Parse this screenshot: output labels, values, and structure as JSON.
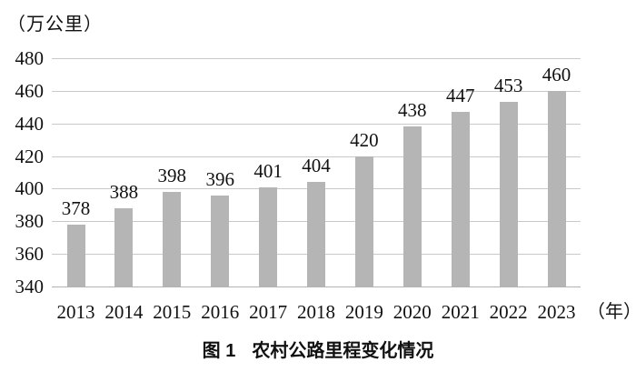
{
  "chart_data": {
    "type": "bar",
    "title": "图 1　农村公路里程变化情况",
    "caption_prefix": "图 1",
    "caption_text": "农村公路里程变化情况",
    "unit_label": "（万公里）",
    "x_unit_label": "（年）",
    "xlabel": "年",
    "ylabel": "万公里",
    "categories": [
      "2013",
      "2014",
      "2015",
      "2016",
      "2017",
      "2018",
      "2019",
      "2020",
      "2021",
      "2022",
      "2023"
    ],
    "values": [
      378,
      388,
      398,
      396,
      401,
      404,
      420,
      438,
      447,
      453,
      460
    ],
    "ylim": [
      340,
      480
    ],
    "yticks": [
      340,
      360,
      380,
      400,
      420,
      440,
      460,
      480
    ],
    "grid": true,
    "legend": "none",
    "bar_color": "#b5b5b5",
    "grid_color": "#c9c9c9",
    "baseline_color": "#b3b3b3",
    "text_color": "#111111"
  }
}
